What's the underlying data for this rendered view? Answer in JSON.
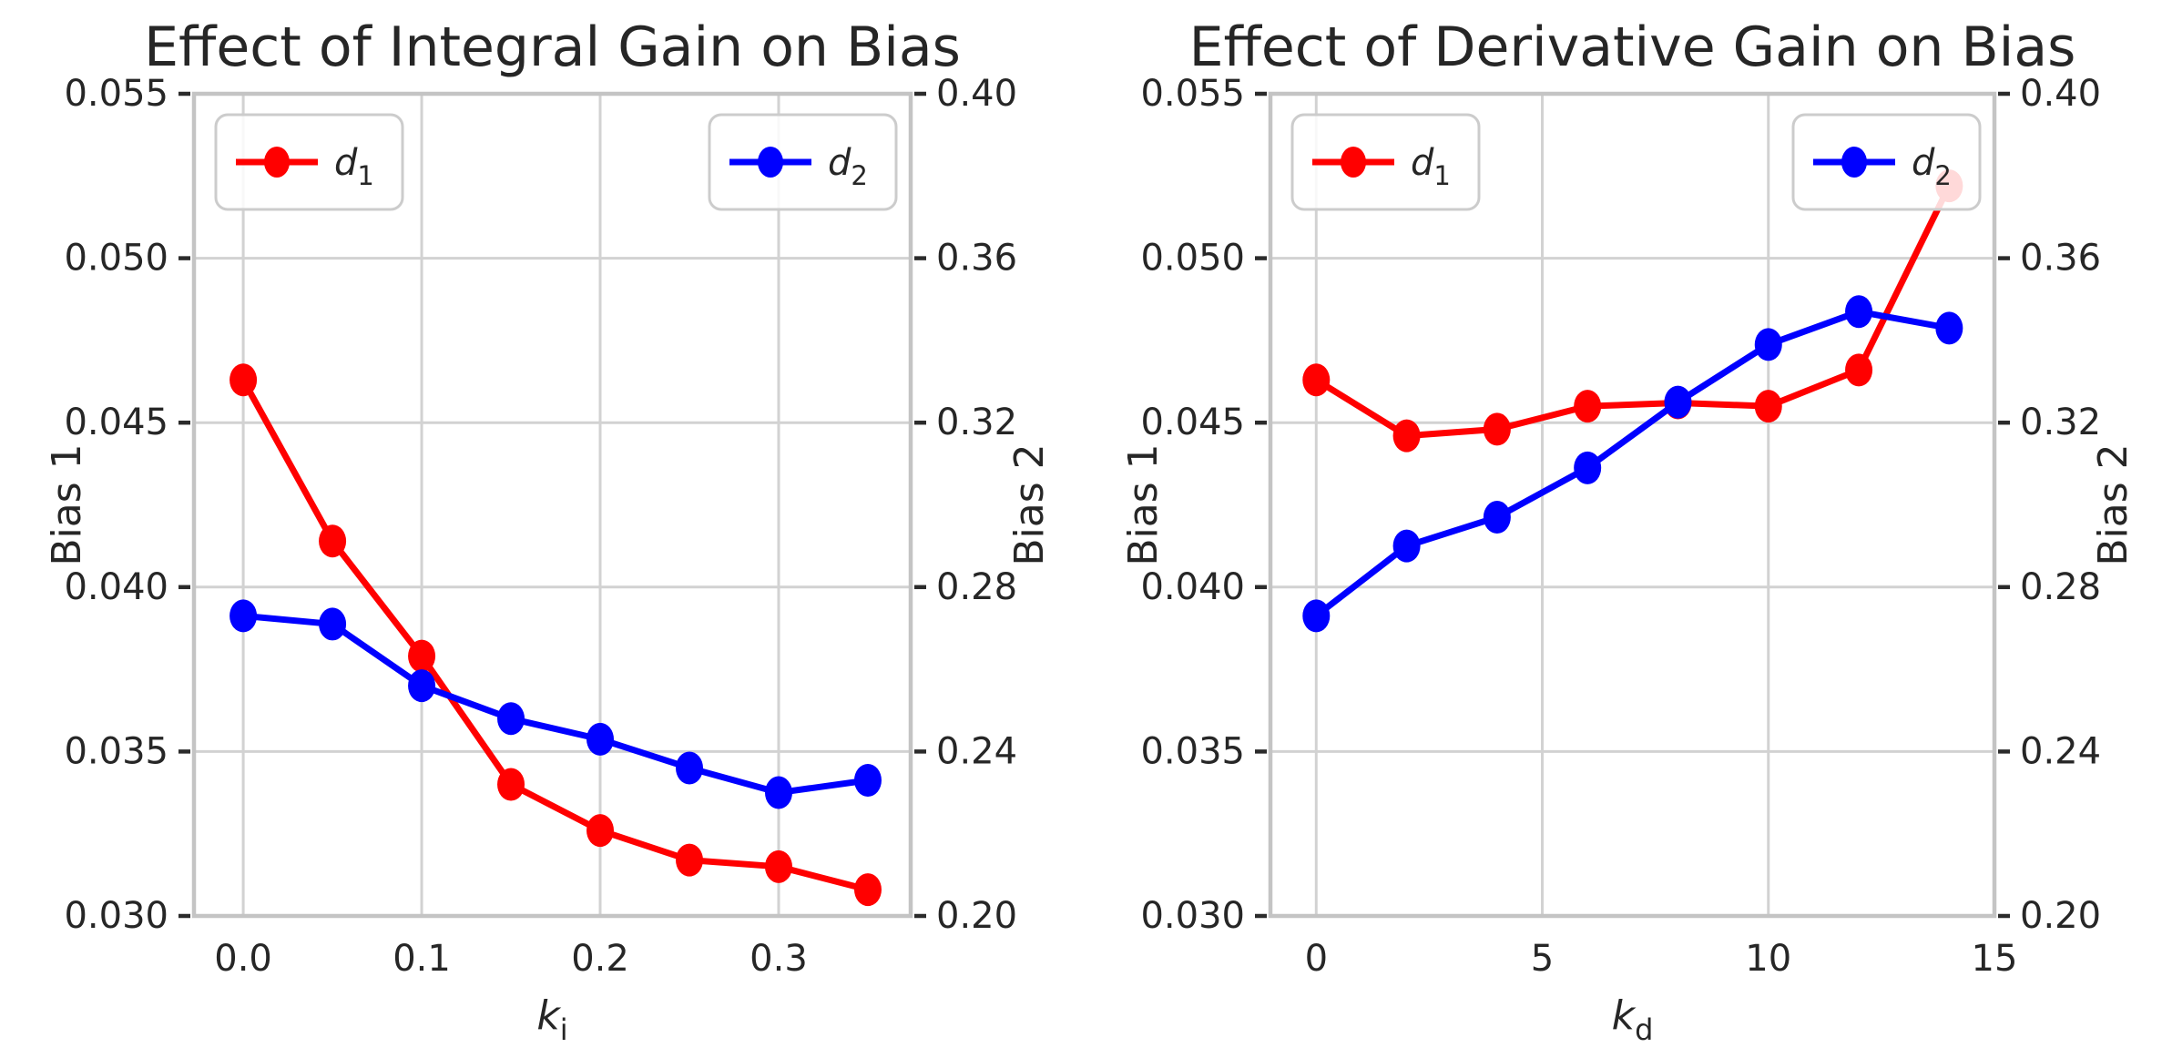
{
  "figure": {
    "background": "#ffffff",
    "text_color": "#262626",
    "grid_color": "#d2d2d2",
    "spine_color": "#c4c4c4",
    "tick_mark_color": "#2b2b2b",
    "legend_border_color": "#cccccc",
    "series_colors": {
      "d1": "#ff0000",
      "d2": "#0000ff"
    }
  },
  "chart_data": [
    {
      "type": "line",
      "title": "Effect of Integral Gain on Bias",
      "xlabel": {
        "base": "k",
        "sub": "i"
      },
      "ylabel_left": "Bias 1",
      "ylabel_right": "Bias 2",
      "grid": true,
      "x": [
        0.0,
        0.05,
        0.1,
        0.15,
        0.2,
        0.25,
        0.3,
        0.35
      ],
      "xticks": {
        "values": [
          0.0,
          0.1,
          0.2,
          0.3
        ],
        "labels": [
          "0.0",
          "0.1",
          "0.2",
          "0.3"
        ]
      },
      "xlim": [
        -0.0276,
        0.374
      ],
      "ylim_left": [
        0.03,
        0.055
      ],
      "ylim_right": [
        0.2,
        0.4
      ],
      "yticks_left": {
        "values": [
          0.03,
          0.035,
          0.04,
          0.045,
          0.05,
          0.055
        ],
        "labels": [
          "0.030",
          "0.035",
          "0.040",
          "0.045",
          "0.050",
          "0.055"
        ]
      },
      "yticks_right": {
        "values": [
          0.2,
          0.24,
          0.28,
          0.32,
          0.36,
          0.4
        ],
        "labels": [
          "0.20",
          "0.24",
          "0.28",
          "0.32",
          "0.36",
          "0.40"
        ]
      },
      "series": [
        {
          "name": {
            "base": "d",
            "sub": "1"
          },
          "color": "#ff0000",
          "axis": "left",
          "legend": "upper-left",
          "values": [
            0.0463,
            0.0414,
            0.0379,
            0.034,
            0.0326,
            0.0317,
            0.0315,
            0.0308
          ]
        },
        {
          "name": {
            "base": "d",
            "sub": "2"
          },
          "color": "#0000ff",
          "axis": "right",
          "legend": "upper-right",
          "values": [
            0.273,
            0.271,
            0.256,
            0.248,
            0.243,
            0.236,
            0.23,
            0.233
          ]
        }
      ]
    },
    {
      "type": "line",
      "title": "Effect of Derivative Gain on Bias",
      "xlabel": {
        "base": "k",
        "sub": "d"
      },
      "ylabel_left": "Bias 1",
      "ylabel_right": "Bias 2",
      "grid": true,
      "x": [
        0,
        2,
        4,
        6,
        8,
        10,
        12,
        14
      ],
      "xticks": {
        "values": [
          0,
          5,
          10,
          15
        ],
        "labels": [
          "0",
          "5",
          "10",
          "15"
        ]
      },
      "xlim": [
        -1.013,
        15.0
      ],
      "ylim_left": [
        0.03,
        0.055
      ],
      "ylim_right": [
        0.2,
        0.4
      ],
      "yticks_left": {
        "values": [
          0.03,
          0.035,
          0.04,
          0.045,
          0.05,
          0.055
        ],
        "labels": [
          "0.030",
          "0.035",
          "0.040",
          "0.045",
          "0.050",
          "0.055"
        ]
      },
      "yticks_right": {
        "values": [
          0.2,
          0.24,
          0.28,
          0.32,
          0.36,
          0.4
        ],
        "labels": [
          "0.20",
          "0.24",
          "0.28",
          "0.32",
          "0.36",
          "0.40"
        ]
      },
      "series": [
        {
          "name": {
            "base": "d",
            "sub": "1"
          },
          "color": "#ff0000",
          "axis": "left",
          "legend": "upper-left",
          "values": [
            0.0463,
            0.0446,
            0.0448,
            0.0455,
            0.0456,
            0.0455,
            0.0466,
            0.0522
          ]
        },
        {
          "name": {
            "base": "d",
            "sub": "2"
          },
          "color": "#0000ff",
          "axis": "right",
          "legend": "upper-right",
          "values": [
            0.273,
            0.29,
            0.297,
            0.309,
            0.325,
            0.339,
            0.347,
            0.343
          ]
        }
      ]
    }
  ]
}
